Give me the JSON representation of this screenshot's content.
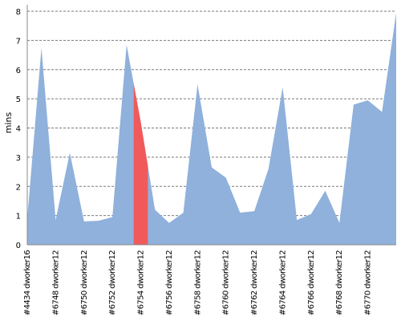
{
  "chart_data": {
    "type": "area",
    "ylabel": "mins",
    "xlabel": "",
    "ylim": [
      0,
      8
    ],
    "y_ticks": [
      0,
      1,
      2,
      3,
      4,
      5,
      6,
      7,
      8
    ],
    "grid": true,
    "colors": {
      "area": "#8fb1db",
      "highlight": "#f05a5a",
      "grid": "#7a7a7a",
      "axis": "#888888"
    },
    "x_tick_labels": [
      "#4434 dworker16",
      "#6748 dworker12",
      "#6750 dworker12",
      "#6752 dworker12",
      "#6754 dworker12",
      "#6756 dworker12",
      "#6758 dworker12",
      "#6760 dworker12",
      "#6762 dworker12",
      "#6764 dworker12",
      "#6766 dworker12",
      "#6768 dworker12",
      "#6770 dworker12"
    ],
    "x_tick_positions": [
      0,
      2,
      4,
      6,
      8,
      10,
      12,
      14,
      16,
      18,
      20,
      22,
      24
    ],
    "series": [
      {
        "values": [
          0.9,
          6.75,
          0.85,
          3.15,
          0.8,
          0.82,
          0.95,
          6.85,
          4.2,
          1.2,
          0.75,
          1.1,
          5.5,
          2.65,
          2.3,
          1.1,
          1.15,
          2.6,
          5.4,
          0.85,
          1.05,
          1.85,
          0.75,
          4.8,
          4.95,
          4.55,
          7.95
        ]
      }
    ],
    "highlight_range": [
      7.5,
      8.5
    ]
  }
}
